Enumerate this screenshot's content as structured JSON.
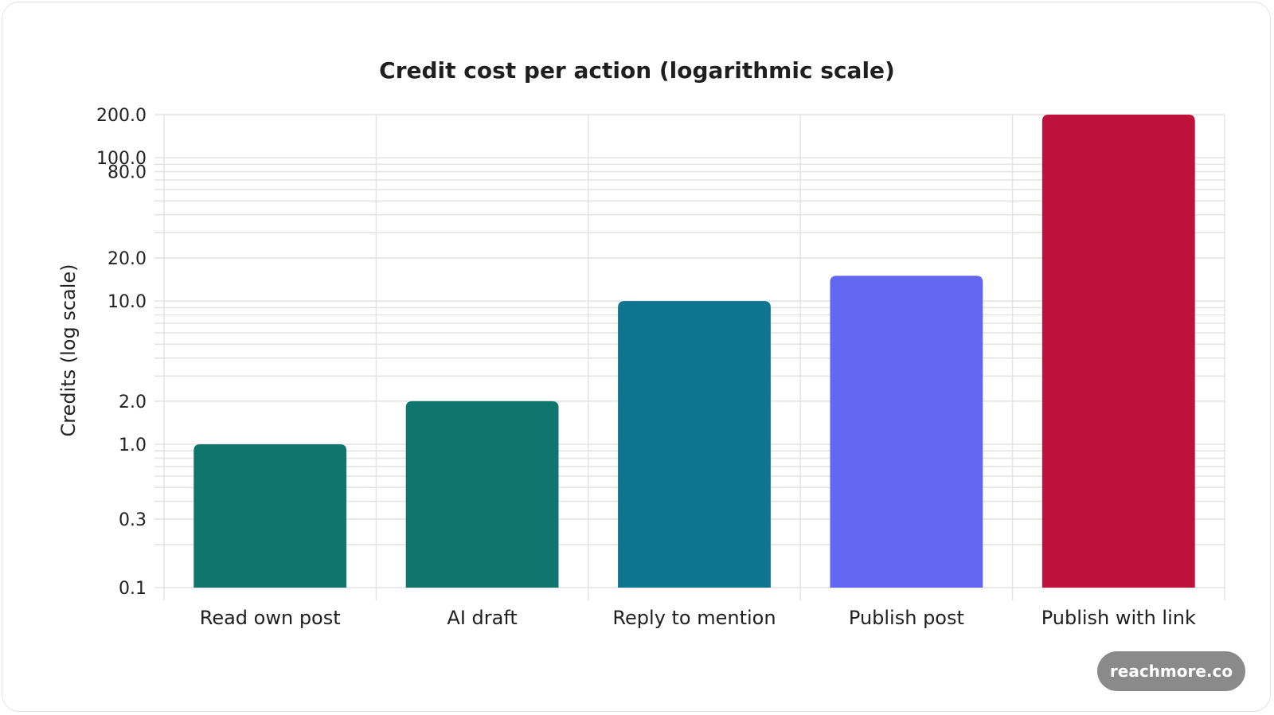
{
  "chart_data": {
    "type": "bar",
    "title": "Credit cost per action (logarithmic scale)",
    "ylabel": "Credits (log scale)",
    "xlabel": "",
    "scale": "log",
    "ylim": [
      0.1,
      200
    ],
    "yticks": [
      0.1,
      0.3,
      1,
      2,
      10,
      20,
      80,
      100,
      200
    ],
    "ytick_labels": [
      "0.1",
      "0.3",
      "1.0",
      "2.0",
      "10.0",
      "20.0",
      "80.0",
      "100.0",
      "200.0"
    ],
    "grid": true,
    "categories": [
      "Read own post",
      "AI draft",
      "Reply to mention",
      "Publish post",
      "Publish with link"
    ],
    "values": [
      1,
      2,
      10,
      15,
      200
    ],
    "colors": [
      "#0f766e",
      "#0f766e",
      "#0e7490",
      "#6366f1",
      "#be123c"
    ]
  },
  "badge": {
    "label": "reachmore.co"
  }
}
